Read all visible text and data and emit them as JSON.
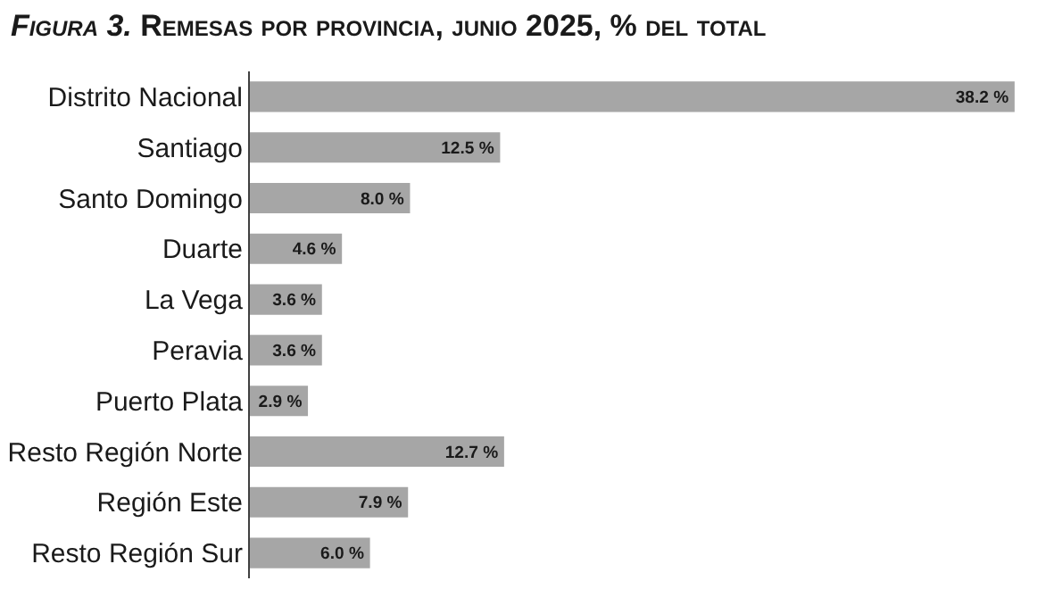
{
  "chart_data": {
    "type": "bar",
    "orientation": "horizontal",
    "title": "Figura 3. Remesas por provincia, junio 2025, % del total",
    "categories": [
      "Distrito Nacional",
      "Santiago",
      "Santo Domingo",
      "Duarte",
      "La Vega",
      "Peravia",
      "Puerto Plata",
      "Resto Región Norte",
      "Región Este",
      "Resto Región Sur"
    ],
    "values": [
      38.2,
      12.5,
      8.0,
      4.6,
      3.6,
      3.6,
      2.9,
      12.7,
      7.9,
      6.0
    ],
    "value_labels": [
      "38.2 %",
      "12.5 %",
      "8.0 %",
      "4.6 %",
      "3.6 %",
      "3.6 %",
      "2.9 %",
      "12.7 %",
      "7.9 %",
      "6.0 %"
    ],
    "color": "#a6a6a6"
  }
}
